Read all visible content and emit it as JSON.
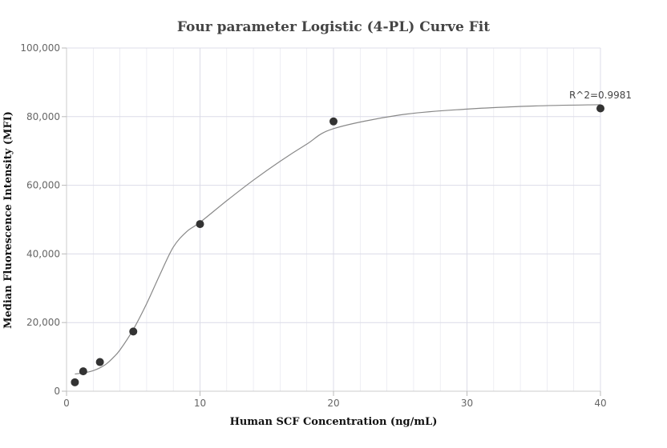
{
  "chart_data": {
    "type": "scatter",
    "title": "Four parameter Logistic (4-PL) Curve Fit",
    "xlabel": "Human SCF Concentration (ng/mL)",
    "ylabel": "Median Fluorescence Intensity (MFI)",
    "xlim": [
      0,
      40
    ],
    "ylim": [
      0,
      100000
    ],
    "x_ticks": [
      0,
      10,
      20,
      30,
      40
    ],
    "x_tick_labels": [
      "0",
      "10",
      "20",
      "30",
      "40"
    ],
    "y_ticks": [
      0,
      20000,
      40000,
      60000,
      80000,
      100000
    ],
    "y_tick_labels": [
      "0",
      "20,000",
      "40,000",
      "60,000",
      "80,000",
      "100,000"
    ],
    "grid": true,
    "points": [
      {
        "x": 0.625,
        "y": 2600
      },
      {
        "x": 1.25,
        "y": 5800
      },
      {
        "x": 2.5,
        "y": 8500
      },
      {
        "x": 5,
        "y": 17400
      },
      {
        "x": 10,
        "y": 48700
      },
      {
        "x": 20,
        "y": 78600
      },
      {
        "x": 40,
        "y": 82400
      }
    ],
    "fit_curve": {
      "model": "4PL",
      "x": [
        0.625,
        1,
        1.5,
        2,
        2.5,
        3,
        3.5,
        4,
        5,
        6,
        7,
        8,
        9,
        10,
        12,
        14,
        16,
        18,
        20,
        25,
        30,
        35,
        40
      ],
      "y": [
        5000,
        5200,
        5500,
        6000,
        6800,
        8000,
        9800,
        12000,
        18000,
        25500,
        34000,
        42000,
        46500,
        49200,
        55500,
        61500,
        67000,
        72000,
        76500,
        80500,
        82200,
        83100,
        83500
      ]
    },
    "annotation": "R^2=0.9981",
    "colors": {
      "point": "#333333",
      "curve": "#888888",
      "grid": "#e6e6ef",
      "axis": "#cccccc"
    }
  }
}
